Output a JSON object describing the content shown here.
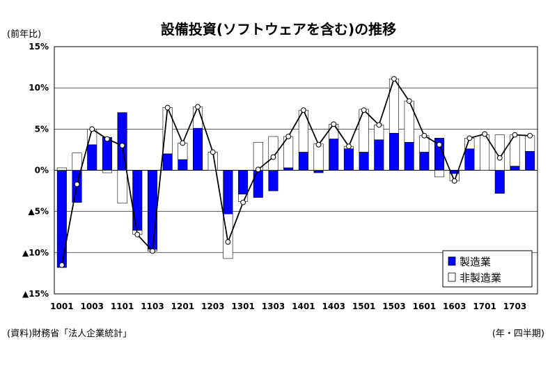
{
  "chart_data": {
    "type": "bar",
    "title": "設備投資(ソフトウェアを含む)の推移",
    "ylabel": "(前年比)",
    "xlabel": "",
    "period_note": "(年・四半期)",
    "source": "(資料)財務省「法人企業統計」",
    "ylim": [
      -15,
      15
    ],
    "y_ticks": [
      {
        "value": 15,
        "label": "15%"
      },
      {
        "value": 10,
        "label": "10%"
      },
      {
        "value": 5,
        "label": "5%"
      },
      {
        "value": 0,
        "label": "0%"
      },
      {
        "value": -5,
        "label": "▲5%"
      },
      {
        "value": -10,
        "label": "▲10%"
      },
      {
        "value": -15,
        "label": "▲15%"
      }
    ],
    "categories": [
      "1001",
      "1002",
      "1003",
      "1004",
      "1101",
      "1102",
      "1103",
      "1104",
      "1201",
      "1202",
      "1203",
      "1204",
      "1301",
      "1302",
      "1303",
      "1304",
      "1401",
      "1402",
      "1403",
      "1404",
      "1501",
      "1502",
      "1503",
      "1504",
      "1601",
      "1602",
      "1603",
      "1604",
      "1701",
      "1702",
      "1703",
      "1704"
    ],
    "x_tick_labels": [
      "1001",
      "1003",
      "1101",
      "1103",
      "1201",
      "1203",
      "1301",
      "1303",
      "1401",
      "1403",
      "1501",
      "1503",
      "1601",
      "1603",
      "1701",
      "1703"
    ],
    "x_tick_every": 2,
    "series": [
      {
        "name": "製造業",
        "color": "#0000ff",
        "values": [
          -11.8,
          -3.9,
          3.1,
          4.0,
          7.0,
          -7.3,
          -9.6,
          2.0,
          1.3,
          5.1,
          0.0,
          -5.3,
          -2.9,
          -3.3,
          -2.5,
          0.3,
          2.2,
          -0.3,
          3.8,
          2.6,
          2.2,
          3.7,
          4.5,
          3.4,
          2.2,
          3.9,
          -0.4,
          2.6,
          0.0,
          -2.8,
          0.5,
          2.3
        ]
      },
      {
        "name": "非製造業",
        "color": "#ffffff",
        "values": [
          0.3,
          2.1,
          1.9,
          -0.3,
          -4.0,
          -0.5,
          -0.2,
          5.6,
          2.0,
          2.6,
          2.2,
          -5.4,
          -0.9,
          3.4,
          4.1,
          3.8,
          5.1,
          3.2,
          1.8,
          0.3,
          5.2,
          1.8,
          6.6,
          5.0,
          2.0,
          -0.8,
          -0.9,
          1.3,
          4.3,
          4.3,
          3.8,
          1.9
        ]
      }
    ],
    "total_line": {
      "values": [
        -11.5,
        -1.7,
        5.0,
        3.8,
        3.0,
        -7.8,
        -9.8,
        7.6,
        3.3,
        7.7,
        2.2,
        -8.7,
        -3.9,
        0.1,
        1.6,
        4.1,
        7.3,
        3.1,
        5.6,
        2.9,
        7.3,
        5.5,
        11.1,
        8.4,
        4.2,
        3.1,
        -1.3,
        3.9,
        4.4,
        1.5,
        4.3,
        4.2
      ]
    },
    "legend_position": "bottom-right",
    "grid": true
  }
}
